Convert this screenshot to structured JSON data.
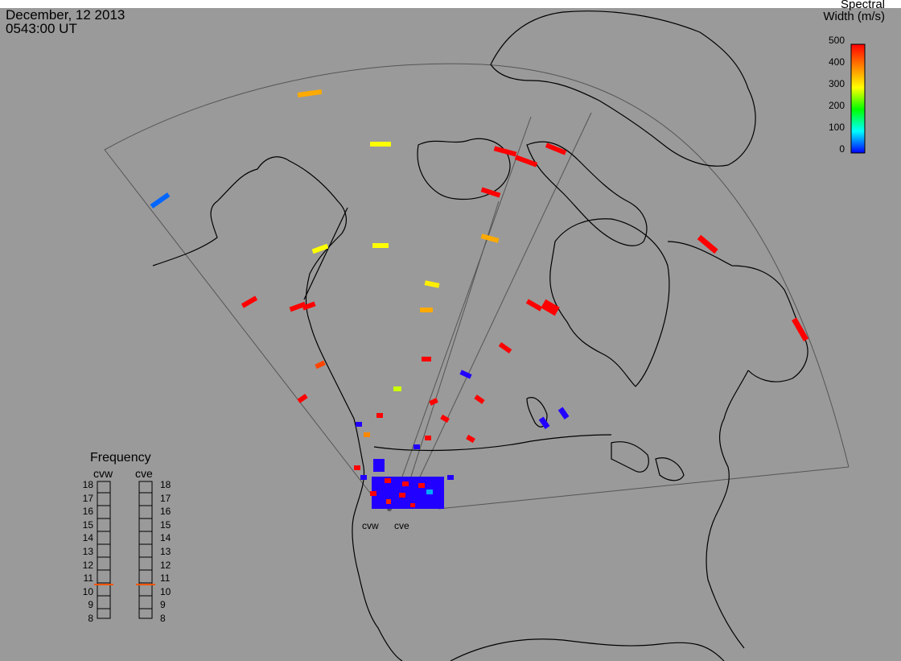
{
  "header": {
    "date": "December, 12 2013",
    "time": "0543:00 UT"
  },
  "colorbar": {
    "title_line1": "Spectral",
    "title_line2": "Width (m/s)",
    "ticks": [
      "500",
      "400",
      "300",
      "200",
      "100",
      "0"
    ],
    "colors": [
      "#ff0000",
      "#ff8000",
      "#ffff00",
      "#00ff00",
      "#00ffff",
      "#0000ff"
    ]
  },
  "frequency": {
    "title": "Frequency",
    "radars": [
      "cvw",
      "cve"
    ],
    "ticks": [
      "18",
      "17",
      "16",
      "15",
      "14",
      "13",
      "12",
      "11",
      "10",
      "9",
      "8"
    ],
    "marker_value": 10.6,
    "marker_color": "#ff6a00"
  },
  "sites": [
    "cvw",
    "cve"
  ],
  "colors": {
    "background": "#9a9a9a",
    "coast": "#000000",
    "fov": "#555555"
  }
}
